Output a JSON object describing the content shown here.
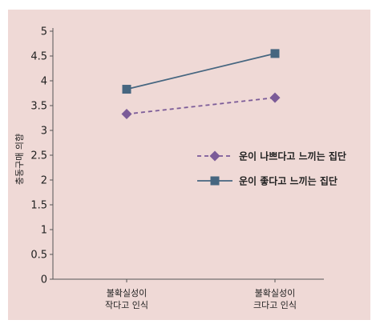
{
  "chart_data": {
    "type": "line",
    "ylabel": "충동구매 의향",
    "ylim": [
      0,
      5
    ],
    "yticks": [
      "0",
      "0.5",
      "1",
      "1.5",
      "2",
      "2.5",
      "3",
      "3.5",
      "4",
      "4.5",
      "5"
    ],
    "categories": [
      [
        "불확실성이",
        "작다고 인식"
      ],
      [
        "불확실성이",
        "크다고 인식"
      ]
    ],
    "series": [
      {
        "name": "운이 나쁘다고 느끼는 집단",
        "values": [
          3.33,
          3.66
        ],
        "color": "#7b5b98",
        "marker": "diamond",
        "line_style": "dashed"
      },
      {
        "name": "운이 좋다고 느끼는 집단",
        "values": [
          3.83,
          4.55
        ],
        "color": "#466680",
        "marker": "square",
        "line_style": "solid"
      }
    ],
    "legend_position": "center-right",
    "grid": false
  }
}
